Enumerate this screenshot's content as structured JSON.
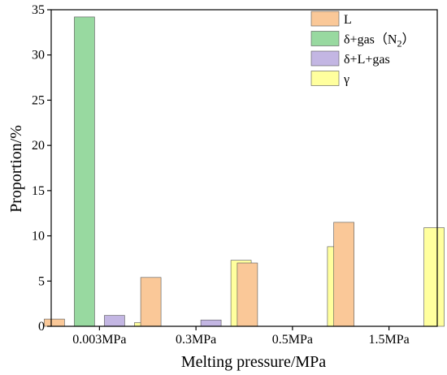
{
  "chart_data": {
    "type": "bar",
    "xlabel": "Melting pressure/MPa",
    "ylabel": "Proportion/%",
    "ylim": [
      0,
      35
    ],
    "yticks": [
      0,
      5,
      10,
      15,
      20,
      25,
      30,
      35
    ],
    "grid": false,
    "legend_position": "top-right",
    "categories": [
      "0.003MPa",
      "0.3MPa",
      "0.5MPa",
      "1.5MPa"
    ],
    "series": [
      {
        "name": "L",
        "color": "#FAC898",
        "values": [
          0.8,
          5.4,
          7.0,
          11.5
        ]
      },
      {
        "name": "δ+gas（N",
        "name_subscript": "2",
        "name_suffix": "）",
        "color": "#98D9A0",
        "values": [
          34.2,
          0,
          0,
          0
        ]
      },
      {
        "name": "δ+L+gas",
        "color": "#C3B6E3",
        "values": [
          1.2,
          0.7,
          0,
          0
        ]
      },
      {
        "name": "γ",
        "color": "#FFFF9E",
        "values": [
          0.4,
          7.3,
          8.8,
          10.9
        ]
      }
    ]
  }
}
